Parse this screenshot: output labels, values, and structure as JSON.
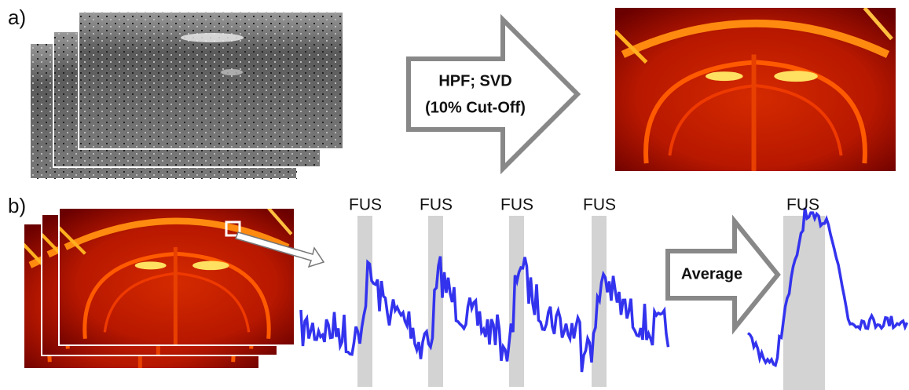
{
  "panel_a": {
    "label": "a)",
    "arrow_label": [
      "HPF; SVD",
      "(10% Cut-Off)"
    ]
  },
  "panel_b": {
    "label": "b)",
    "stimulus_labels": [
      "FUS",
      "FUS",
      "FUS",
      "FUS"
    ],
    "average_label": "Average",
    "average_stimulus_label": "FUS"
  }
}
